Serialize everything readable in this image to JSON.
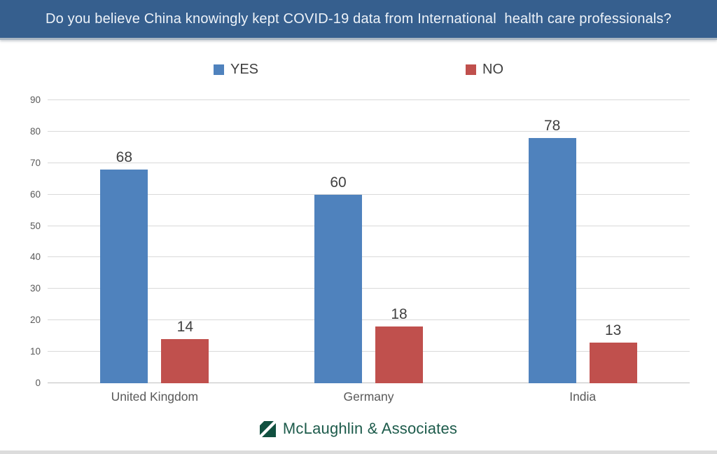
{
  "banner": {
    "title": "Do you believe China knowingly kept COVID-19 data from International  health care professionals?",
    "bg_color": "#365f8e"
  },
  "chart_data": {
    "type": "bar",
    "title": "Do you believe China knowingly kept COVID-19 data from International  health care professionals?",
    "categories": [
      "United Kingdom",
      "Germany",
      "India"
    ],
    "series": [
      {
        "name": "YES",
        "color": "#4f82bd",
        "values": [
          68,
          60,
          78
        ]
      },
      {
        "name": "NO",
        "color": "#c0504d",
        "values": [
          14,
          18,
          13
        ]
      }
    ],
    "xlabel": "",
    "ylabel": "",
    "ylim": [
      0,
      90
    ],
    "ytick_interval": 10,
    "grid": true,
    "value_labels": true,
    "legend_position": "top"
  },
  "colors": {
    "banner_bg": "#365f8e",
    "gridline": "#d9d9d9",
    "axis_text": "#595959",
    "label_text": "#404040",
    "brand_green": "#1d5b4b",
    "logo_green": "#115040"
  },
  "footer": {
    "brand": "McLaughlin & Associates",
    "logo_icon": "diagonal-slash-square"
  }
}
